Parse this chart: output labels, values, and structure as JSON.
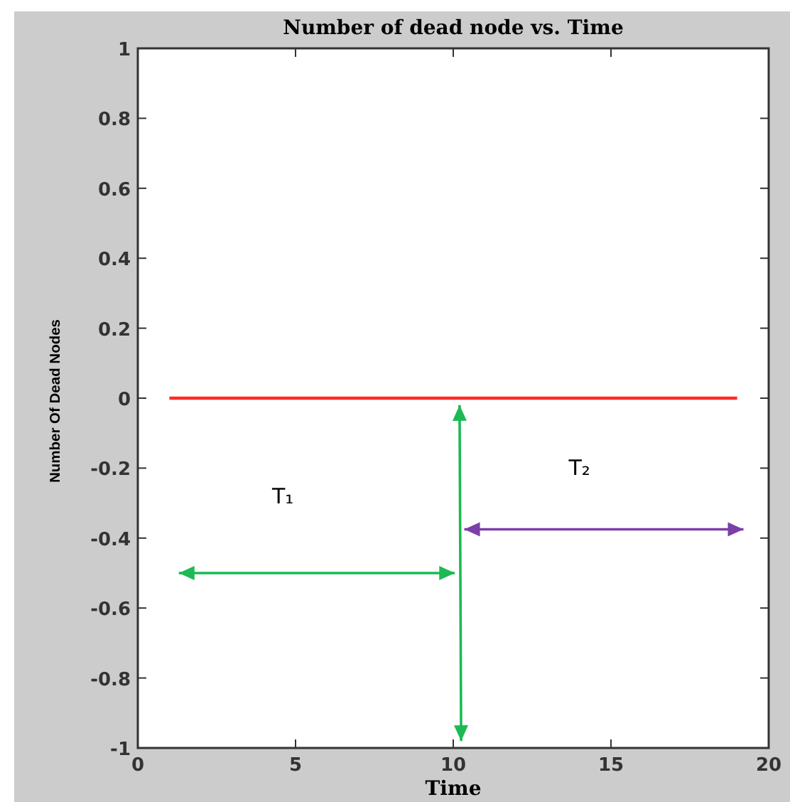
{
  "chart_data": {
    "type": "line",
    "title": "Number of dead node vs. Time",
    "xlabel": "Time",
    "ylabel": "Number Of Dead Nodes",
    "x": [
      1,
      19
    ],
    "series": [
      {
        "color": "#ff2a2a",
        "values": [
          0,
          0
        ]
      }
    ],
    "xlim": [
      0,
      20
    ],
    "xticks": [
      0,
      5,
      10,
      15,
      20
    ],
    "ylim": [
      -1,
      1
    ],
    "yticks": [
      -1,
      -0.8,
      -0.6,
      -0.4,
      -0.2,
      0,
      0.2,
      0.4,
      0.6,
      0.8,
      1
    ],
    "grid": false,
    "marker": "none",
    "line_style": "solid",
    "annotations": [
      "T₁",
      "T₂"
    ]
  }
}
